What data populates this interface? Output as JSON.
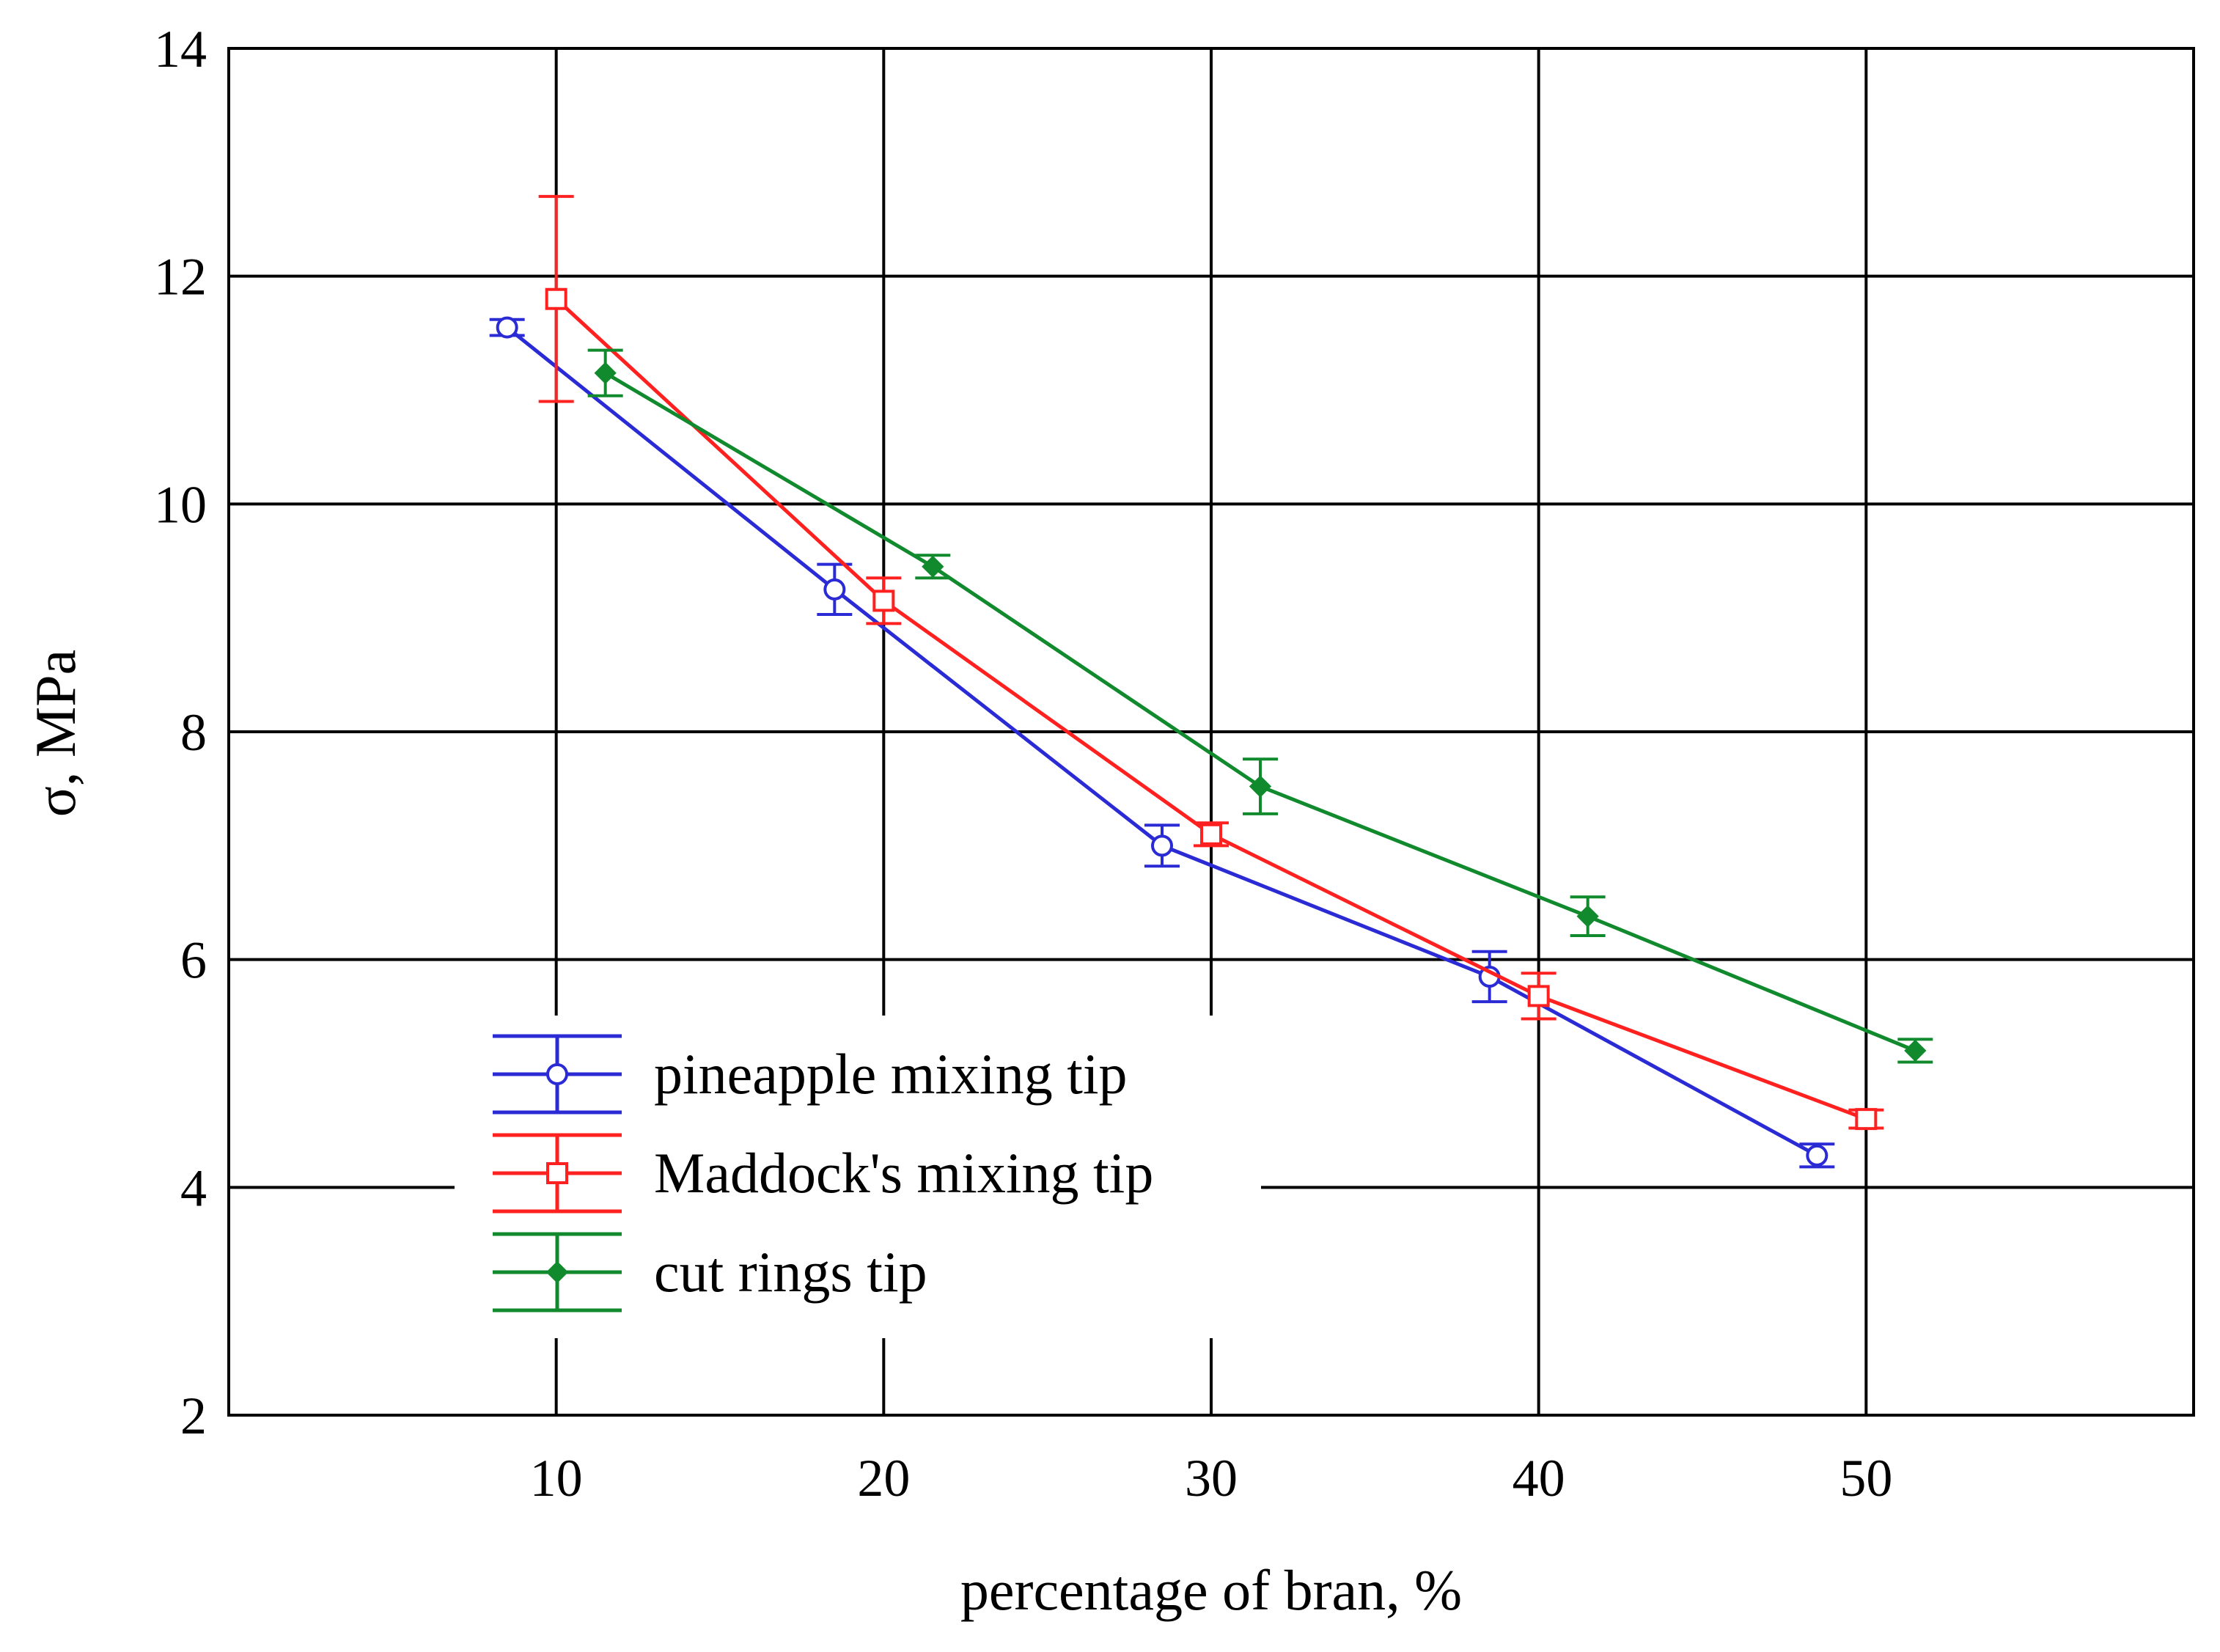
{
  "chart_data": {
    "type": "line",
    "title": "",
    "xlabel": "percentage of bran, %",
    "ylabel": "σ, MPa",
    "xlim": [
      0,
      60
    ],
    "ylim": [
      2,
      14
    ],
    "xticks": [
      10,
      20,
      30,
      40,
      50
    ],
    "yticks": [
      2,
      4,
      6,
      8,
      10,
      12,
      14
    ],
    "grid": true,
    "legend_position": "bottom-left",
    "series": [
      {
        "name": "pineapple mixing tip",
        "color": "#2b2bd6",
        "marker": "circle",
        "x": [
          8.5,
          18.5,
          28.5,
          38.5,
          48.5
        ],
        "y": [
          11.55,
          9.25,
          7.0,
          5.85,
          4.28
        ],
        "err": [
          0.07,
          0.22,
          0.18,
          0.22,
          0.1
        ]
      },
      {
        "name": "Maddock's mixing tip",
        "color": "#ff2020",
        "marker": "square",
        "x": [
          10,
          20,
          30,
          40,
          50
        ],
        "y": [
          11.8,
          9.15,
          7.1,
          5.68,
          4.6
        ],
        "err": [
          0.9,
          0.2,
          0.1,
          0.2,
          0.08
        ]
      },
      {
        "name": "cut rings tip",
        "color": "#118a2e",
        "marker": "diamond",
        "x": [
          11.5,
          21.5,
          31.5,
          41.5,
          51.5
        ],
        "y": [
          11.15,
          9.45,
          7.52,
          6.38,
          5.2
        ],
        "err": [
          0.2,
          0.1,
          0.24,
          0.17,
          0.1
        ]
      }
    ]
  }
}
